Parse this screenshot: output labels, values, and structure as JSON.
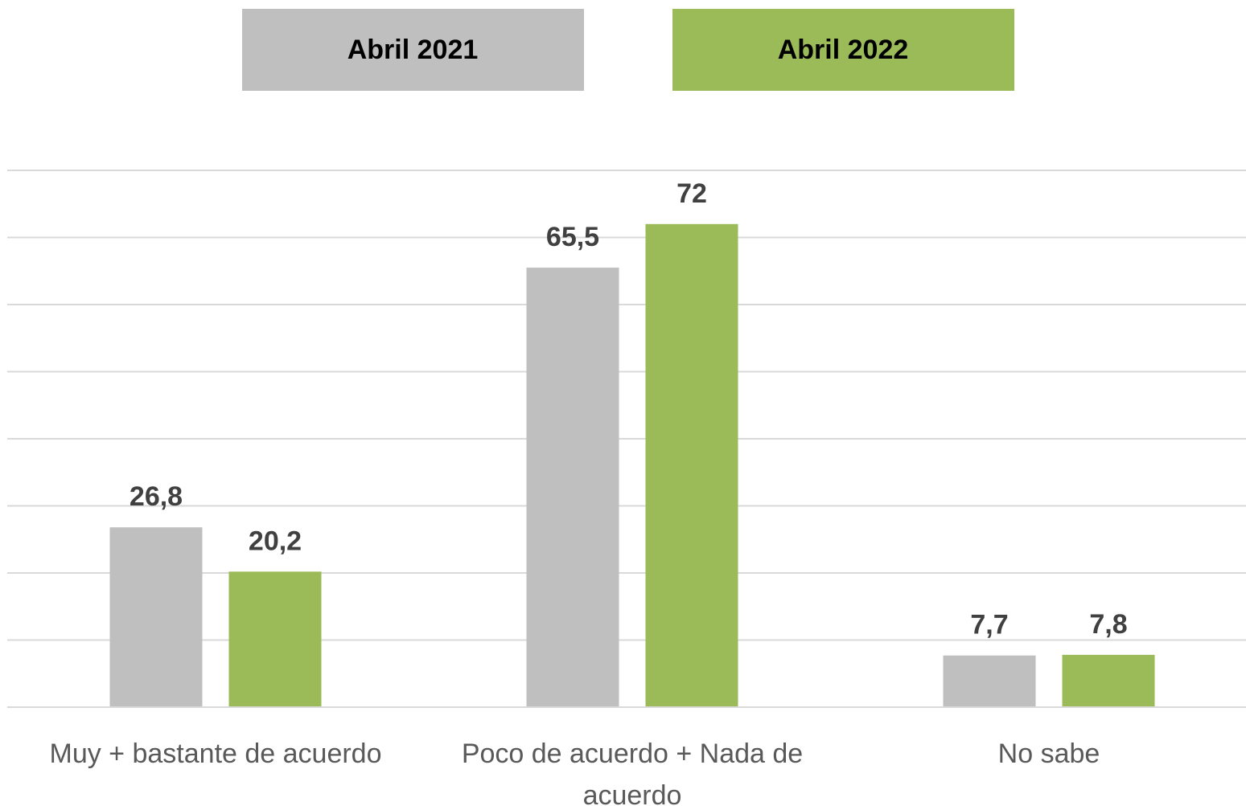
{
  "chart_data": {
    "type": "bar",
    "categories": [
      "Muy + bastante de acuerdo",
      "Poco de acuerdo + Nada de acuerdo",
      "No sabe"
    ],
    "series": [
      {
        "name": "Abril 2021",
        "color": "#bfbfbf",
        "values": [
          26.8,
          65.5,
          7.7
        ],
        "value_labels": [
          "26,8",
          "65,5",
          "7,7"
        ]
      },
      {
        "name": "Abril 2022",
        "color": "#9bbb59",
        "values": [
          20.2,
          72,
          7.8
        ],
        "value_labels": [
          "20,2",
          "72",
          "7,8"
        ]
      }
    ],
    "ylim": [
      0,
      80
    ],
    "yticks": [
      0,
      10,
      20,
      30,
      40,
      50,
      60,
      70,
      80
    ],
    "grid": true,
    "legend": "top"
  }
}
